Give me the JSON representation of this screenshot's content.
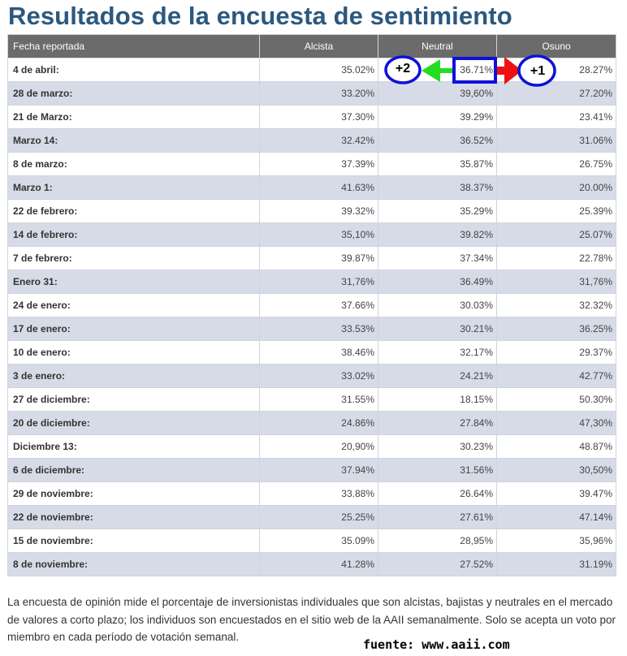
{
  "title": "Resultados de la encuesta de sentimiento",
  "table": {
    "headers": [
      "Fecha reportada",
      "Alcista",
      "Neutral",
      "Osuno"
    ],
    "rows": [
      {
        "date": "4 de abril:",
        "bull": "35.02%",
        "neutral": "36.71%",
        "bear": "28.27%"
      },
      {
        "date": "28 de marzo:",
        "bull": "33.20%",
        "neutral": "39,60%",
        "bear": "27.20%"
      },
      {
        "date": "21 de Marzo:",
        "bull": "37.30%",
        "neutral": "39.29%",
        "bear": "23.41%"
      },
      {
        "date": "Marzo 14:",
        "bull": "32.42%",
        "neutral": "36.52%",
        "bear": "31.06%"
      },
      {
        "date": "8 de marzo:",
        "bull": "37.39%",
        "neutral": "35.87%",
        "bear": "26.75%"
      },
      {
        "date": "Marzo 1:",
        "bull": "41.63%",
        "neutral": "38.37%",
        "bear": "20.00%"
      },
      {
        "date": "22 de febrero:",
        "bull": "39.32%",
        "neutral": "35.29%",
        "bear": "25.39%"
      },
      {
        "date": "14 de febrero:",
        "bull": "35,10%",
        "neutral": "39.82%",
        "bear": "25.07%"
      },
      {
        "date": "7 de febrero:",
        "bull": "39.87%",
        "neutral": "37.34%",
        "bear": "22.78%"
      },
      {
        "date": "Enero 31:",
        "bull": "31,76%",
        "neutral": "36.49%",
        "bear": "31,76%"
      },
      {
        "date": "24 de enero:",
        "bull": "37.66%",
        "neutral": "30.03%",
        "bear": "32.32%"
      },
      {
        "date": "17 de enero:",
        "bull": "33.53%",
        "neutral": "30.21%",
        "bear": "36.25%"
      },
      {
        "date": "10 de enero:",
        "bull": "38.46%",
        "neutral": "32.17%",
        "bear": "29.37%"
      },
      {
        "date": "3 de enero:",
        "bull": "33.02%",
        "neutral": "24.21%",
        "bear": "42.77%"
      },
      {
        "date": "27 de diciembre:",
        "bull": "31.55%",
        "neutral": "18.15%",
        "bear": "50.30%"
      },
      {
        "date": "20 de diciembre:",
        "bull": "24.86%",
        "neutral": "27.84%",
        "bear": "47,30%"
      },
      {
        "date": "Diciembre 13:",
        "bull": "20,90%",
        "neutral": "30.23%",
        "bear": "48.87%"
      },
      {
        "date": "6 de diciembre:",
        "bull": "37.94%",
        "neutral": "31.56%",
        "bear": "30,50%"
      },
      {
        "date": "29 de noviembre:",
        "bull": "33.88%",
        "neutral": "26.64%",
        "bear": "39.47%"
      },
      {
        "date": "22 de noviembre:",
        "bull": "25.25%",
        "neutral": "27.61%",
        "bear": "47.14%"
      },
      {
        "date": "15 de noviembre:",
        "bull": "35.09%",
        "neutral": "28,95%",
        "bear": "35,96%"
      },
      {
        "date": "8 de noviembre:",
        "bull": "41.28%",
        "neutral": "27.52%",
        "bear": "31.19%"
      }
    ]
  },
  "annotations": {
    "left_label": "+2",
    "right_label": "+1",
    "colors": {
      "circle": "#1010d8",
      "box": "#1010d8",
      "arrow_left": "#22dd22",
      "arrow_right": "#ee1111"
    }
  },
  "description": "La encuesta de opinión mide el porcentaje de inversionistas individuales que son alcistas, bajistas y neutrales en el mercado de valores a corto plazo; los individuos son encuestados en el sitio web de la AAII semanalmente. Solo se acepta un voto por miembro en cada período de votación semanal.",
  "source": "fuente: www.aaii.com"
}
